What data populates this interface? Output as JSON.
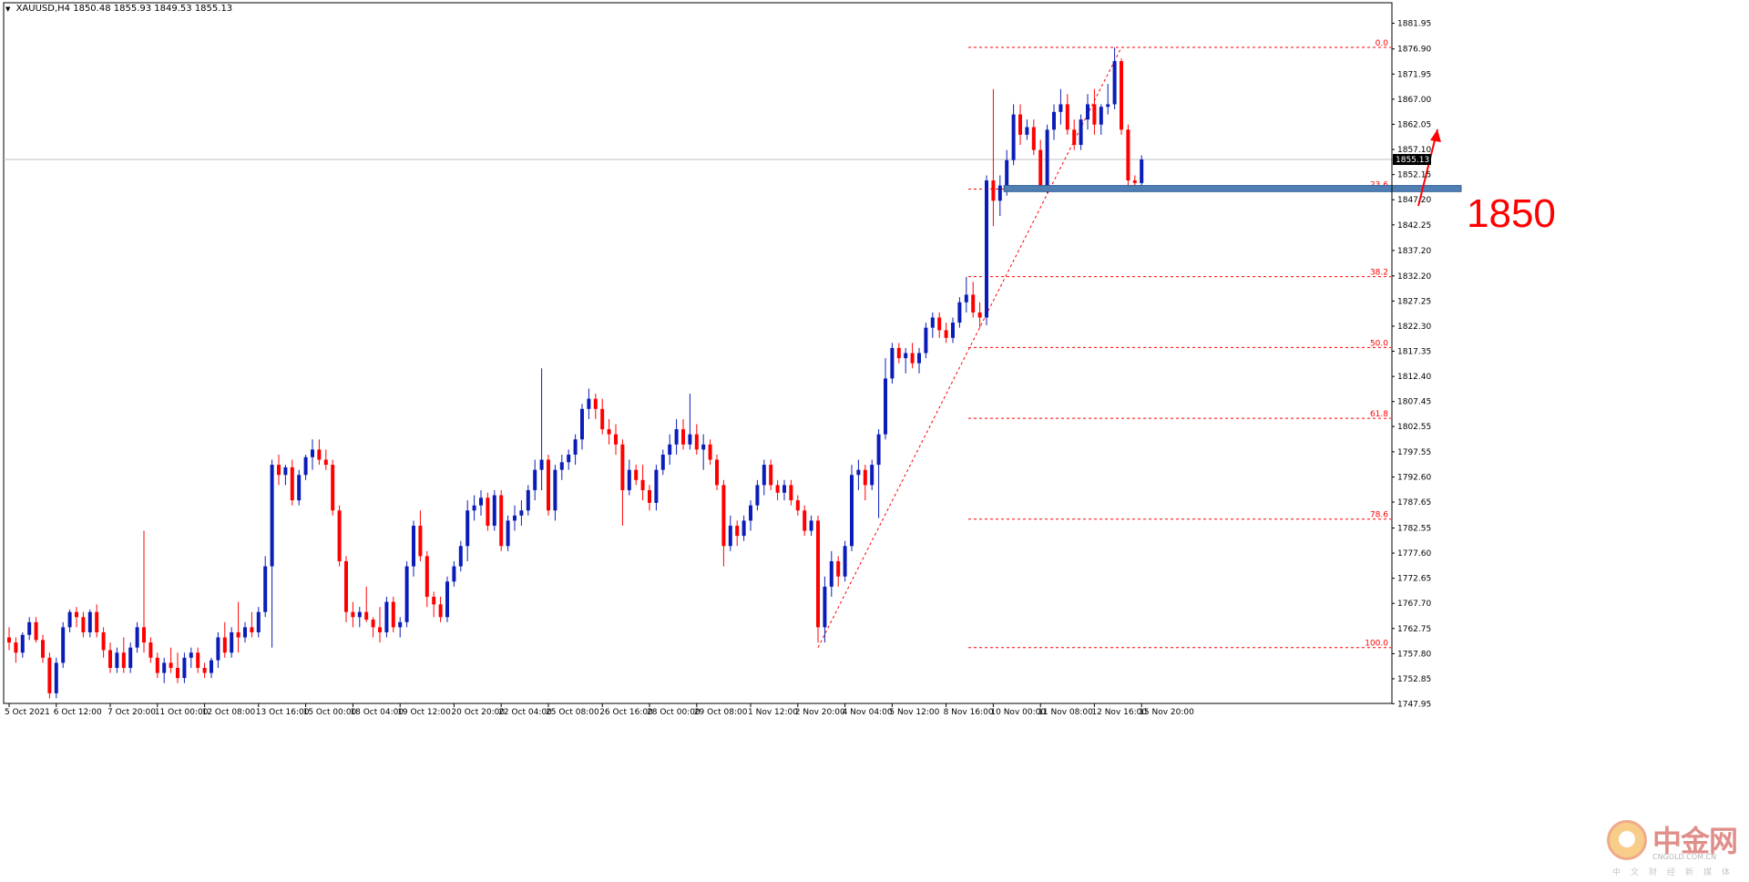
{
  "header": {
    "symbol": "XAUUSD,H4",
    "ohlc": "1850.48 1855.93 1849.53 1855.13"
  },
  "annotation": {
    "text": "1850"
  },
  "watermark": {
    "name": "中金网",
    "domain": "CNGOLD.COM.CN",
    "tagline": "中文财经新媒体"
  },
  "colors": {
    "bull": "#0b1db8",
    "bear": "#ff0000",
    "fib": "#ff0000",
    "zone_fill": "#4f7fb3",
    "current_price_line": "#c0c0c0"
  },
  "chart_data": {
    "type": "candlestick",
    "title": "XAUUSD,H4",
    "ylim": [
      1748.0,
      1886.0
    ],
    "current_price": 1855.13,
    "current_price_label": "1855.13",
    "y_ticks": [
      "1881.95",
      "1876.90",
      "1871.95",
      "1867.00",
      "1862.05",
      "1857.10",
      "1852.15",
      "1847.20",
      "1842.25",
      "1837.20",
      "1832.20",
      "1827.25",
      "1822.30",
      "1817.35",
      "1812.40",
      "1807.45",
      "1802.55",
      "1797.55",
      "1792.60",
      "1787.65",
      "1782.55",
      "1777.60",
      "1772.65",
      "1767.70",
      "1762.75",
      "1757.80",
      "1752.85",
      "1747.95"
    ],
    "x_ticks": [
      "5 Oct 2021",
      "6 Oct 12:00",
      "7 Oct 20:00",
      "11 Oct 00:00",
      "12 Oct 08:00",
      "13 Oct 16:00",
      "15 Oct 00:00",
      "18 Oct 04:00",
      "19 Oct 12:00",
      "20 Oct 20:00",
      "22 Oct 04:00",
      "25 Oct 08:00",
      "26 Oct 16:00",
      "28 Oct 00:00",
      "29 Oct 08:00",
      "1 Nov 12:00",
      "2 Nov 20:00",
      "4 Nov 04:00",
      "5 Nov 12:00",
      "8 Nov 16:00",
      "10 Nov 00:00",
      "11 Nov 08:00",
      "12 Nov 16:00",
      "15 Nov 20:00"
    ],
    "fibonacci": {
      "from_price": 1759.0,
      "to_price": 1877.2,
      "levels": [
        {
          "label": "0.0",
          "price": 1877.2
        },
        {
          "label": "23.6",
          "price": 1849.3
        },
        {
          "label": "38.2",
          "price": 1832.05
        },
        {
          "label": "50.0",
          "price": 1818.1
        },
        {
          "label": "61.8",
          "price": 1804.15
        },
        {
          "label": "78.6",
          "price": 1784.3
        },
        {
          "label": "100.0",
          "price": 1759.0
        }
      ]
    },
    "support_zone": {
      "price_low": 1848.8,
      "price_high": 1850.0
    },
    "candles": [
      [
        1761.0,
        1763.0,
        1758.5,
        1760.0
      ],
      [
        1760.0,
        1761.0,
        1756.0,
        1758.0
      ],
      [
        1758.0,
        1762.0,
        1757.0,
        1761.5
      ],
      [
        1761.5,
        1765.0,
        1760.5,
        1764.0
      ],
      [
        1764.0,
        1765.0,
        1760.0,
        1760.5
      ],
      [
        1760.5,
        1761.5,
        1756.0,
        1757.0
      ],
      [
        1757.0,
        1758.0,
        1749.0,
        1750.0
      ],
      [
        1750.0,
        1757.0,
        1749.0,
        1756.0
      ],
      [
        1756.0,
        1764.0,
        1755.0,
        1763.0
      ],
      [
        1763.0,
        1766.5,
        1762.0,
        1766.0
      ],
      [
        1766.0,
        1767.0,
        1763.0,
        1765.0
      ],
      [
        1765.0,
        1766.0,
        1761.0,
        1762.0
      ],
      [
        1762.0,
        1766.5,
        1761.0,
        1766.0
      ],
      [
        1766.0,
        1767.5,
        1761.0,
        1762.0
      ],
      [
        1762.0,
        1763.0,
        1757.0,
        1758.5
      ],
      [
        1758.5,
        1760.0,
        1754.0,
        1755.0
      ],
      [
        1755.0,
        1759.0,
        1754.0,
        1758.0
      ],
      [
        1758.0,
        1761.0,
        1754.0,
        1755.0
      ],
      [
        1755.0,
        1760.0,
        1754.0,
        1759.0
      ],
      [
        1759.0,
        1764.0,
        1758.0,
        1763.0
      ],
      [
        1763.0,
        1782.0,
        1758.0,
        1760.0
      ],
      [
        1760.0,
        1761.0,
        1756.0,
        1757.0
      ],
      [
        1757.0,
        1758.0,
        1753.0,
        1754.0
      ],
      [
        1754.0,
        1757.0,
        1752.0,
        1756.0
      ],
      [
        1756.0,
        1759.0,
        1754.0,
        1755.0
      ],
      [
        1755.0,
        1758.0,
        1752.0,
        1753.0
      ],
      [
        1753.0,
        1758.0,
        1752.0,
        1757.0
      ],
      [
        1757.0,
        1759.0,
        1755.0,
        1758.0
      ],
      [
        1758.0,
        1759.0,
        1754.0,
        1755.0
      ],
      [
        1755.0,
        1756.0,
        1753.0,
        1754.0
      ],
      [
        1754.0,
        1757.0,
        1753.0,
        1756.5
      ],
      [
        1756.5,
        1762.0,
        1755.0,
        1761.0
      ],
      [
        1761.0,
        1764.0,
        1757.0,
        1758.0
      ],
      [
        1758.0,
        1763.0,
        1757.0,
        1762.0
      ],
      [
        1762.0,
        1768.0,
        1758.0,
        1761.0
      ],
      [
        1761.0,
        1764.0,
        1760.0,
        1763.0
      ],
      [
        1763.0,
        1766.0,
        1761.0,
        1762.0
      ],
      [
        1762.0,
        1767.0,
        1761.0,
        1766.0
      ],
      [
        1766.0,
        1777.0,
        1765.0,
        1775.0
      ],
      [
        1775.0,
        1796.0,
        1759.0,
        1795.0
      ],
      [
        1795.0,
        1797.0,
        1791.0,
        1793.0
      ],
      [
        1793.0,
        1795.0,
        1791.0,
        1794.5
      ],
      [
        1794.5,
        1796.0,
        1787.0,
        1788.0
      ],
      [
        1788.0,
        1794.0,
        1787.0,
        1793.0
      ],
      [
        1793.0,
        1797.0,
        1792.0,
        1796.5
      ],
      [
        1796.5,
        1800.0,
        1794.0,
        1798.0
      ],
      [
        1798.0,
        1800.0,
        1795.0,
        1796.0
      ],
      [
        1796.0,
        1798.0,
        1794.0,
        1795.0
      ],
      [
        1795.0,
        1796.0,
        1785.0,
        1786.0
      ],
      [
        1786.0,
        1787.0,
        1775.0,
        1776.0
      ],
      [
        1776.0,
        1777.0,
        1764.0,
        1766.0
      ],
      [
        1766.0,
        1768.0,
        1763.0,
        1765.0
      ],
      [
        1765.0,
        1767.0,
        1763.0,
        1766.0
      ],
      [
        1766.0,
        1771.0,
        1764.0,
        1764.5
      ],
      [
        1764.5,
        1765.0,
        1761.0,
        1763.0
      ],
      [
        1763.0,
        1767.0,
        1760.0,
        1762.0
      ],
      [
        1762.0,
        1769.0,
        1761.0,
        1768.0
      ],
      [
        1768.0,
        1769.0,
        1762.0,
        1763.0
      ],
      [
        1763.0,
        1765.0,
        1761.0,
        1764.0
      ],
      [
        1764.0,
        1776.0,
        1763.0,
        1775.0
      ],
      [
        1775.0,
        1784.0,
        1773.0,
        1783.0
      ],
      [
        1783.0,
        1786.0,
        1776.0,
        1777.0
      ],
      [
        1777.0,
        1778.0,
        1767.0,
        1769.0
      ],
      [
        1769.0,
        1770.0,
        1765.0,
        1767.5
      ],
      [
        1767.5,
        1769.0,
        1764.0,
        1765.0
      ],
      [
        1765.0,
        1773.0,
        1764.0,
        1772.0
      ],
      [
        1772.0,
        1776.0,
        1771.0,
        1775.0
      ],
      [
        1775.0,
        1780.0,
        1774.0,
        1779.0
      ],
      [
        1779.0,
        1788.0,
        1776.0,
        1786.0
      ],
      [
        1786.0,
        1789.0,
        1784.0,
        1787.0
      ],
      [
        1787.0,
        1790.0,
        1785.0,
        1788.5
      ],
      [
        1788.5,
        1789.5,
        1782.0,
        1783.0
      ],
      [
        1783.0,
        1790.0,
        1782.0,
        1789.0
      ],
      [
        1789.0,
        1790.0,
        1778.0,
        1779.0
      ],
      [
        1779.0,
        1785.0,
        1778.0,
        1784.0
      ],
      [
        1784.0,
        1787.0,
        1782.0,
        1785.0
      ],
      [
        1785.0,
        1788.0,
        1783.0,
        1786.0
      ],
      [
        1786.0,
        1791.0,
        1785.0,
        1790.0
      ],
      [
        1790.0,
        1796.0,
        1788.0,
        1794.0
      ],
      [
        1794.0,
        1814.0,
        1790.0,
        1796.0
      ],
      [
        1796.0,
        1797.0,
        1785.0,
        1786.0
      ],
      [
        1786.0,
        1795.0,
        1784.0,
        1794.0
      ],
      [
        1794.0,
        1797.0,
        1792.0,
        1795.5
      ],
      [
        1795.5,
        1798.0,
        1794.0,
        1797.0
      ],
      [
        1797.0,
        1801.0,
        1795.0,
        1800.0
      ],
      [
        1800.0,
        1807.0,
        1798.0,
        1806.0
      ],
      [
        1806.0,
        1810.0,
        1804.0,
        1808.0
      ],
      [
        1808.0,
        1809.0,
        1804.0,
        1806.0
      ],
      [
        1806.0,
        1808.0,
        1801.0,
        1802.0
      ],
      [
        1802.0,
        1804.0,
        1799.0,
        1801.0
      ],
      [
        1801.0,
        1803.0,
        1797.0,
        1799.0
      ],
      [
        1799.0,
        1800.0,
        1783.0,
        1790.0
      ],
      [
        1790.0,
        1796.0,
        1789.0,
        1794.0
      ],
      [
        1794.0,
        1795.0,
        1791.0,
        1792.0
      ],
      [
        1792.0,
        1795.0,
        1788.0,
        1790.0
      ],
      [
        1790.0,
        1791.0,
        1786.0,
        1787.5
      ],
      [
        1787.5,
        1795.0,
        1786.0,
        1794.0
      ],
      [
        1794.0,
        1798.0,
        1793.0,
        1797.0
      ],
      [
        1797.0,
        1801.0,
        1795.0,
        1799.0
      ],
      [
        1799.0,
        1804.0,
        1797.0,
        1802.0
      ],
      [
        1802.0,
        1804.0,
        1798.0,
        1799.0
      ],
      [
        1799.0,
        1809.0,
        1798.0,
        1801.0
      ],
      [
        1801.0,
        1803.0,
        1797.0,
        1798.0
      ],
      [
        1798.0,
        1801.0,
        1794.0,
        1799.0
      ],
      [
        1799.0,
        1800.0,
        1795.0,
        1796.0
      ],
      [
        1796.0,
        1797.0,
        1790.0,
        1791.0
      ],
      [
        1791.0,
        1792.0,
        1775.0,
        1779.0
      ],
      [
        1779.0,
        1785.0,
        1778.0,
        1783.0
      ],
      [
        1783.0,
        1784.0,
        1779.0,
        1781.0
      ],
      [
        1781.0,
        1785.0,
        1780.0,
        1784.0
      ],
      [
        1784.0,
        1788.0,
        1782.0,
        1787.0
      ],
      [
        1787.0,
        1792.0,
        1786.0,
        1791.0
      ],
      [
        1791.0,
        1796.0,
        1789.0,
        1795.0
      ],
      [
        1795.0,
        1796.0,
        1790.0,
        1791.0
      ],
      [
        1791.0,
        1792.0,
        1788.0,
        1789.5
      ],
      [
        1789.5,
        1792.0,
        1788.0,
        1791.0
      ],
      [
        1791.0,
        1792.0,
        1787.0,
        1788.0
      ],
      [
        1788.0,
        1789.0,
        1785.0,
        1786.0
      ],
      [
        1786.0,
        1787.0,
        1781.0,
        1782.0
      ],
      [
        1782.0,
        1785.0,
        1781.0,
        1784.0
      ],
      [
        1784.0,
        1785.0,
        1760.0,
        1763.0
      ],
      [
        1763.0,
        1773.0,
        1760.0,
        1771.0
      ],
      [
        1771.0,
        1778.0,
        1769.0,
        1776.0
      ],
      [
        1776.0,
        1777.0,
        1771.0,
        1773.0
      ],
      [
        1773.0,
        1780.0,
        1772.0,
        1779.0
      ],
      [
        1779.0,
        1795.0,
        1778.0,
        1793.0
      ],
      [
        1793.0,
        1796.0,
        1790.0,
        1794.0
      ],
      [
        1794.0,
        1795.0,
        1788.0,
        1791.0
      ],
      [
        1791.0,
        1796.0,
        1790.0,
        1795.0
      ],
      [
        1795.0,
        1802.0,
        1784.5,
        1801.0
      ],
      [
        1801.0,
        1816.0,
        1800.0,
        1812.0
      ],
      [
        1812.0,
        1819.0,
        1811.0,
        1818.0
      ],
      [
        1818.0,
        1819.0,
        1815.0,
        1816.0
      ],
      [
        1816.0,
        1818.0,
        1813.0,
        1817.0
      ],
      [
        1817.0,
        1819.0,
        1814.0,
        1815.0
      ],
      [
        1815.0,
        1818.0,
        1813.0,
        1817.0
      ],
      [
        1817.0,
        1823.0,
        1816.0,
        1822.0
      ],
      [
        1822.0,
        1825.0,
        1820.0,
        1824.0
      ],
      [
        1824.0,
        1825.0,
        1820.0,
        1821.5
      ],
      [
        1821.5,
        1823.0,
        1819.0,
        1820.0
      ],
      [
        1820.0,
        1824.0,
        1819.0,
        1823.0
      ],
      [
        1823.0,
        1828.0,
        1822.0,
        1827.0
      ],
      [
        1827.0,
        1832.0,
        1825.0,
        1828.5
      ],
      [
        1828.5,
        1831.0,
        1824.0,
        1825.0
      ],
      [
        1825.0,
        1827.0,
        1822.0,
        1824.0
      ],
      [
        1824.0,
        1852.0,
        1822.5,
        1851.0
      ],
      [
        1851.0,
        1869.0,
        1842.0,
        1847.0
      ],
      [
        1847.0,
        1852.0,
        1844.0,
        1850.0
      ],
      [
        1850.0,
        1857.0,
        1848.0,
        1855.0
      ],
      [
        1855.0,
        1866.0,
        1854.0,
        1864.0
      ],
      [
        1864.0,
        1866.0,
        1858.0,
        1860.0
      ],
      [
        1860.0,
        1863.0,
        1859.0,
        1861.5
      ],
      [
        1861.5,
        1863.0,
        1856.0,
        1857.0
      ],
      [
        1857.0,
        1859.0,
        1849.0,
        1850.0
      ],
      [
        1850.0,
        1862.0,
        1848.5,
        1861.0
      ],
      [
        1861.0,
        1866.0,
        1859.0,
        1864.5
      ],
      [
        1864.5,
        1869.0,
        1862.0,
        1866.0
      ],
      [
        1866.0,
        1868.0,
        1860.0,
        1861.0
      ],
      [
        1861.0,
        1863.0,
        1857.0,
        1858.0
      ],
      [
        1858.0,
        1864.0,
        1857.0,
        1863.0
      ],
      [
        1863.0,
        1868.0,
        1861.0,
        1866.0
      ],
      [
        1866.0,
        1869.0,
        1860.0,
        1862.0
      ],
      [
        1862.0,
        1866.0,
        1860.0,
        1865.5
      ],
      [
        1865.5,
        1870.0,
        1864.0,
        1866.0
      ],
      [
        1866.0,
        1877.2,
        1865.0,
        1874.5
      ],
      [
        1874.5,
        1875.0,
        1860.0,
        1861.0
      ],
      [
        1861.0,
        1862.0,
        1850.0,
        1851.0
      ],
      [
        1851.0,
        1852.0,
        1850.0,
        1850.5
      ],
      [
        1850.48,
        1855.93,
        1849.53,
        1855.13
      ]
    ]
  }
}
